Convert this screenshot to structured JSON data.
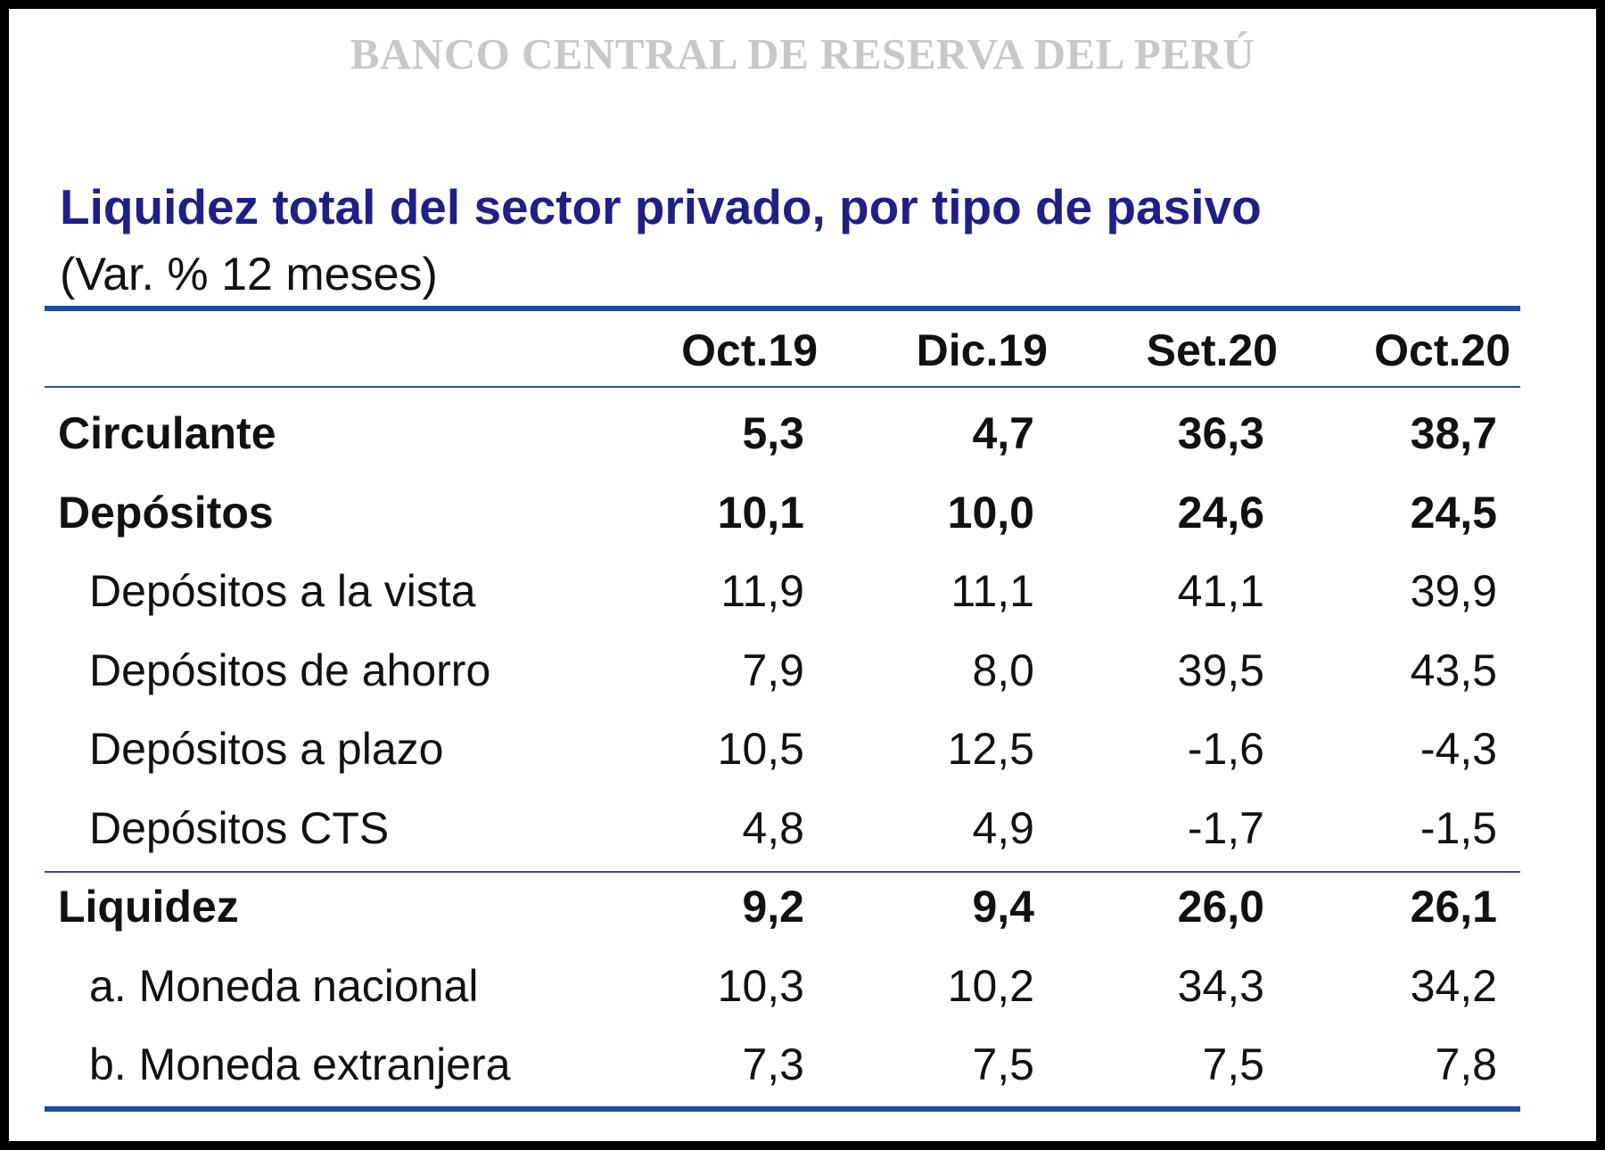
{
  "header": {
    "institution": "BANCO CENTRAL DE RESERVA DEL PERÚ"
  },
  "chart_data": {
    "type": "table",
    "title": "Liquidez total del sector privado, por tipo de pasivo",
    "subtitle": "(Var. % 12 meses)",
    "columns": [
      "Oct.19",
      "Dic.19",
      "Set.20",
      "Oct.20"
    ],
    "rows": [
      {
        "label": "Circulante",
        "values": [
          "5,3",
          "4,7",
          "36,3",
          "38,7"
        ]
      },
      {
        "label": "Depósitos",
        "values": [
          "10,1",
          "10,0",
          "24,6",
          "24,5"
        ]
      },
      {
        "label": "Depósitos a la vista",
        "values": [
          "11,9",
          "11,1",
          "41,1",
          "39,9"
        ]
      },
      {
        "label": "Depósitos de ahorro",
        "values": [
          "7,9",
          "8,0",
          "39,5",
          "43,5"
        ]
      },
      {
        "label": "Depósitos a plazo",
        "values": [
          "10,5",
          "12,5",
          "-1,6",
          "-4,3"
        ]
      },
      {
        "label": "Depósitos CTS",
        "values": [
          "4,8",
          "4,9",
          "-1,7",
          "-1,5"
        ]
      },
      {
        "label": "Liquidez",
        "values": [
          "9,2",
          "9,4",
          "26,0",
          "26,1"
        ]
      },
      {
        "label": "a. Moneda nacional",
        "values": [
          "10,3",
          "10,2",
          "34,3",
          "34,2"
        ]
      },
      {
        "label": "b. Moneda extranjera",
        "values": [
          "7,3",
          "7,5",
          "7,5",
          "7,8"
        ]
      }
    ]
  },
  "colors": {
    "title": "#1f1f86",
    "rule": "#1f4aa0",
    "watermark": "#c8c8c8",
    "frame": "#000000"
  }
}
